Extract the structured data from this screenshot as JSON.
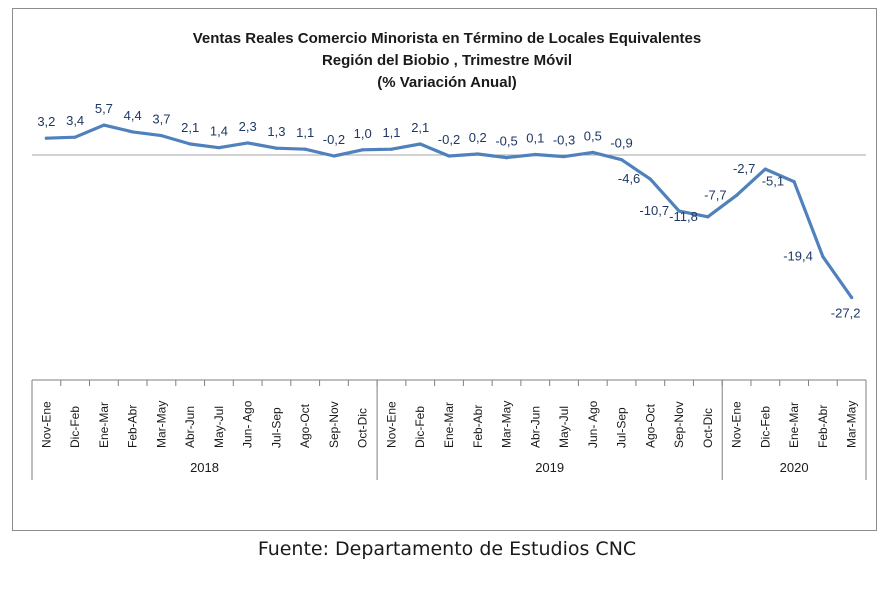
{
  "chart_data": {
    "type": "line",
    "title_lines": [
      "Ventas Reales Comercio Minorista  en Término de Locales Equivalentes",
      "Región del Biobio , Trimestre Móvil",
      "(% Variación Anual)"
    ],
    "categories": [
      "Nov-Ene",
      "Dic-Feb",
      "Ene-Mar",
      "Feb-Abr",
      "Mar-May",
      "Abr-Jun",
      "May-Jul",
      "Jun- Ago",
      "Jul-Sep",
      "Ago-Oct",
      "Sep-Nov",
      "Oct-Dic",
      "Nov-Ene",
      "Dic-Feb",
      "Ene-Mar",
      "Feb-Abr",
      "Mar-May",
      "Abr-Jun",
      "May-Jul",
      "Jun- Ago",
      "Jul-Sep",
      "Ago-Oct",
      "Sep-Nov",
      "Oct-Dic",
      "Nov-Ene",
      "Dic-Feb",
      "Ene-Mar",
      "Feb-Abr",
      "Mar-May"
    ],
    "values": [
      3.2,
      3.4,
      5.7,
      4.4,
      3.7,
      2.1,
      1.4,
      2.3,
      1.3,
      1.1,
      -0.2,
      1.0,
      1.1,
      2.1,
      -0.2,
      0.2,
      -0.5,
      0.1,
      -0.3,
      0.5,
      -0.9,
      -4.6,
      -10.7,
      -11.8,
      -7.7,
      -2.7,
      -5.1,
      -19.4,
      -27.2
    ],
    "data_labels": [
      "3,2",
      "3,4",
      "5,7",
      "4,4",
      "3,7",
      "2,1",
      "1,4",
      "2,3",
      "1,3",
      "1,1",
      "-0,2",
      "1,0",
      "1,1",
      "2,1",
      "-0,2",
      "0,2",
      "-0,5",
      "0,1",
      "-0,3",
      "0,5",
      "-0,9",
      "-4,6",
      "-10,7",
      "-11,8",
      "-7,7",
      "-2,7",
      "-5,1",
      "-19,4",
      "-27,2"
    ],
    "year_groups": [
      {
        "label": "2018",
        "start": 0,
        "end": 11
      },
      {
        "label": "2019",
        "start": 12,
        "end": 23
      },
      {
        "label": "2020",
        "start": 24,
        "end": 28
      }
    ],
    "ylim": [
      -40,
      9
    ],
    "grid": false,
    "colors": {
      "line": "#4f81bd",
      "labels": "#1f3864",
      "axis": "#7f7f7f"
    }
  },
  "source": "Fuente: Departamento de Estudios CNC"
}
